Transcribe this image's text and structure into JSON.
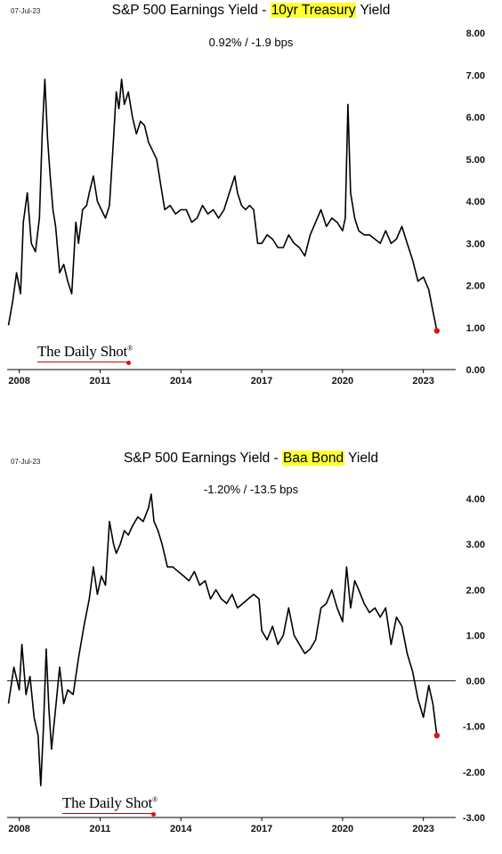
{
  "charts": [
    {
      "date_stamp": "07-Jul-23",
      "title_prefix": "S&P 500 Earnings Yield - ",
      "title_highlight": "10yr Treasury",
      "title_suffix": " Yield",
      "subtitle": "0.92%  /  -1.9 bps",
      "logo_text": "The Daily Shot",
      "logo_mark": "®"
    },
    {
      "date_stamp": "07-Jul-23",
      "title_prefix": "S&P 500 Earnings Yield - ",
      "title_highlight": "Baa Bond",
      "title_suffix": " Yield",
      "subtitle": "-1.20%  /  -13.5 bps",
      "logo_text": "The Daily Shot",
      "logo_mark": "®"
    }
  ],
  "chart_data": [
    {
      "type": "line",
      "title": "S&P 500 Earnings Yield - 10yr Treasury Yield",
      "xlim": [
        2007.55,
        2024.2
      ],
      "ylim": [
        0,
        8
      ],
      "x_ticks": [
        2008,
        2011,
        2014,
        2017,
        2020,
        2023
      ],
      "x_tick_labels": [
        "2008",
        "2011",
        "2014",
        "2017",
        "2020",
        "2023"
      ],
      "y_ticks": [
        0,
        1,
        2,
        3,
        4,
        5,
        6,
        7,
        8
      ],
      "y_tick_labels": [
        "0.00",
        "1.00",
        "2.00",
        "3.00",
        "4.00",
        "5.00",
        "6.00",
        "7.00",
        "8.00"
      ],
      "y_axis_side": "right",
      "highlight_color": "#ffff33",
      "line_color": "#000000",
      "end_marker_color": "#e01010",
      "series": [
        {
          "x": [
            2007.6,
            2007.75,
            2007.9,
            2008.05,
            2008.15,
            2008.3,
            2008.45,
            2008.6,
            2008.75,
            2008.85,
            2008.95,
            2009.05,
            2009.15,
            2009.25,
            2009.35,
            2009.5,
            2009.65,
            2009.8,
            2009.95,
            2010.1,
            2010.2,
            2010.35,
            2010.5,
            2010.6,
            2010.75,
            2010.9,
            2011.05,
            2011.2,
            2011.35,
            2011.5,
            2011.6,
            2011.7,
            2011.8,
            2011.9,
            2012.05,
            2012.2,
            2012.35,
            2012.5,
            2012.65,
            2012.8,
            2012.95,
            2013.1,
            2013.25,
            2013.4,
            2013.6,
            2013.8,
            2014.0,
            2014.2,
            2014.4,
            2014.6,
            2014.8,
            2015.0,
            2015.2,
            2015.4,
            2015.6,
            2015.8,
            2016.0,
            2016.1,
            2016.25,
            2016.4,
            2016.55,
            2016.7,
            2016.85,
            2017.0,
            2017.2,
            2017.4,
            2017.6,
            2017.8,
            2018.0,
            2018.2,
            2018.4,
            2018.6,
            2018.8,
            2019.0,
            2019.2,
            2019.4,
            2019.6,
            2019.8,
            2020.0,
            2020.1,
            2020.2,
            2020.3,
            2020.45,
            2020.6,
            2020.8,
            2021.0,
            2021.2,
            2021.4,
            2021.6,
            2021.8,
            2022.0,
            2022.2,
            2022.4,
            2022.6,
            2022.8,
            2023.0,
            2023.2,
            2023.35,
            2023.5
          ],
          "y": [
            1.05,
            1.6,
            2.3,
            1.8,
            3.5,
            4.2,
            3.0,
            2.8,
            3.6,
            5.6,
            6.9,
            5.5,
            4.6,
            3.8,
            3.4,
            2.3,
            2.5,
            2.1,
            1.8,
            3.5,
            3.0,
            3.8,
            3.9,
            4.2,
            4.6,
            4.0,
            3.8,
            3.6,
            3.9,
            5.5,
            6.6,
            6.2,
            6.9,
            6.3,
            6.6,
            6.0,
            5.6,
            5.9,
            5.8,
            5.4,
            5.2,
            5.0,
            4.4,
            3.8,
            3.9,
            3.7,
            3.8,
            3.8,
            3.5,
            3.6,
            3.9,
            3.7,
            3.8,
            3.6,
            3.8,
            4.2,
            4.6,
            4.2,
            3.9,
            3.8,
            3.9,
            3.8,
            3.0,
            3.0,
            3.2,
            3.1,
            2.9,
            2.9,
            3.2,
            3.0,
            2.9,
            2.7,
            3.2,
            3.5,
            3.8,
            3.4,
            3.6,
            3.5,
            3.3,
            3.6,
            6.3,
            4.2,
            3.6,
            3.3,
            3.2,
            3.2,
            3.1,
            3.0,
            3.3,
            3.0,
            3.1,
            3.4,
            3.0,
            2.6,
            2.1,
            2.2,
            1.9,
            1.4,
            0.92
          ]
        }
      ]
    },
    {
      "type": "line",
      "title": "S&P 500 Earnings Yield - Baa Bond Yield",
      "xlim": [
        2007.55,
        2024.2
      ],
      "ylim": [
        -3,
        4
      ],
      "x_ticks": [
        2008,
        2011,
        2014,
        2017,
        2020,
        2023
      ],
      "x_tick_labels": [
        "2008",
        "2011",
        "2014",
        "2017",
        "2020",
        "2023"
      ],
      "y_ticks": [
        -3,
        -2,
        -1,
        0,
        1,
        2,
        3,
        4
      ],
      "y_tick_labels": [
        "-3.00",
        "-2.00",
        "-1.00",
        "0.00",
        "1.00",
        "2.00",
        "3.00",
        "4.00"
      ],
      "y_axis_side": "right",
      "zero_line": true,
      "highlight_color": "#ffff33",
      "line_color": "#000000",
      "end_marker_color": "#e01010",
      "series": [
        {
          "x": [
            2007.6,
            2007.8,
            2008.0,
            2008.1,
            2008.25,
            2008.4,
            2008.55,
            2008.7,
            2008.8,
            2008.9,
            2009.0,
            2009.1,
            2009.2,
            2009.35,
            2009.5,
            2009.65,
            2009.8,
            2010.0,
            2010.2,
            2010.4,
            2010.6,
            2010.75,
            2010.9,
            2011.05,
            2011.2,
            2011.35,
            2011.5,
            2011.6,
            2011.75,
            2011.9,
            2012.05,
            2012.2,
            2012.4,
            2012.6,
            2012.8,
            2012.9,
            2013.0,
            2013.15,
            2013.3,
            2013.5,
            2013.7,
            2013.9,
            2014.1,
            2014.3,
            2014.5,
            2014.7,
            2014.9,
            2015.1,
            2015.3,
            2015.5,
            2015.7,
            2015.9,
            2016.1,
            2016.3,
            2016.5,
            2016.7,
            2016.9,
            2017.0,
            2017.2,
            2017.4,
            2017.6,
            2017.8,
            2018.0,
            2018.2,
            2018.4,
            2018.6,
            2018.8,
            2019.0,
            2019.2,
            2019.4,
            2019.6,
            2019.8,
            2020.0,
            2020.15,
            2020.3,
            2020.45,
            2020.6,
            2020.8,
            2021.0,
            2021.2,
            2021.4,
            2021.6,
            2021.8,
            2022.0,
            2022.2,
            2022.4,
            2022.6,
            2022.8,
            2023.0,
            2023.2,
            2023.35,
            2023.5
          ],
          "y": [
            -0.5,
            0.3,
            -0.2,
            0.8,
            -0.3,
            0.1,
            -0.8,
            -1.2,
            -2.3,
            -1.0,
            0.7,
            -0.6,
            -1.5,
            -0.6,
            0.3,
            -0.5,
            -0.2,
            -0.3,
            0.5,
            1.2,
            1.8,
            2.5,
            1.9,
            2.3,
            2.1,
            3.5,
            3.0,
            2.8,
            3.0,
            3.3,
            3.2,
            3.4,
            3.6,
            3.5,
            3.8,
            4.1,
            3.5,
            3.3,
            3.0,
            2.5,
            2.5,
            2.4,
            2.3,
            2.2,
            2.4,
            2.1,
            2.2,
            1.8,
            2.0,
            1.8,
            1.7,
            1.9,
            1.6,
            1.7,
            1.8,
            1.9,
            1.8,
            1.1,
            0.9,
            1.2,
            0.8,
            1.0,
            1.6,
            1.0,
            0.8,
            0.6,
            0.7,
            0.9,
            1.6,
            1.7,
            2.0,
            1.6,
            1.3,
            2.5,
            1.6,
            2.2,
            2.0,
            1.7,
            1.5,
            1.6,
            1.4,
            1.6,
            0.8,
            1.4,
            1.2,
            0.6,
            0.2,
            -0.4,
            -0.8,
            -0.1,
            -0.5,
            -1.2
          ]
        }
      ]
    }
  ]
}
